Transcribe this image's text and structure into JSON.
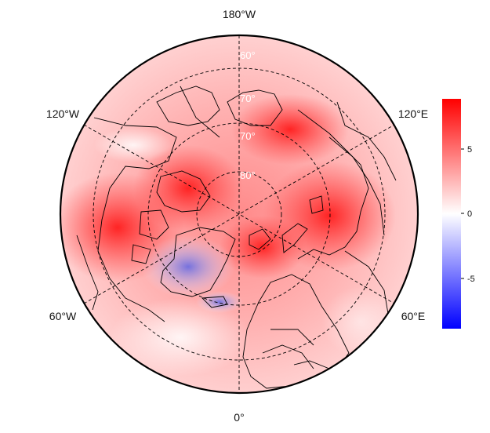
{
  "map": {
    "projection": "north-polar-stereographic",
    "longitude_labels": {
      "top": "180°W",
      "upper_left": "120°W",
      "upper_right": "120°E",
      "lower_left": "60°W",
      "lower_right": "60°E",
      "bottom": "0°"
    },
    "latitude_labels": [
      "60°",
      "70°",
      "80°"
    ],
    "colors": {
      "outline": "#000000",
      "graticule": "#000000",
      "background_red": "#ffd6d6",
      "strong_red": "#ff2a2a",
      "blue": "#6b6bd8"
    }
  },
  "colorbar": {
    "ticks": [
      "5",
      "0",
      "-5"
    ],
    "colors": [
      "#ff0000",
      "#ffffff",
      "#0000ff"
    ]
  }
}
